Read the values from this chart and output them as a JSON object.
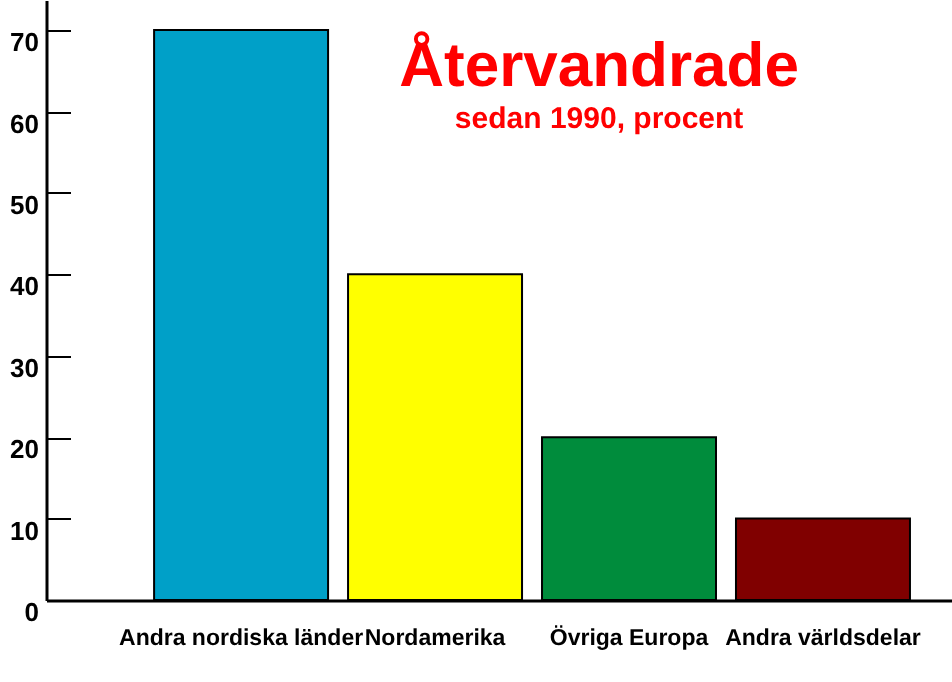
{
  "chart_data": {
    "type": "bar",
    "title": "Återvandrade",
    "subtitle": "sedan 1990,  procent",
    "categories": [
      "Andra nordiska länder",
      "Nordamerika",
      "Övriga Europa",
      "Andra världsdelar"
    ],
    "values": [
      70,
      40,
      20,
      10
    ],
    "colors": [
      "#00a0c8",
      "#ffff00",
      "#008c3c",
      "#800000"
    ],
    "ylim": [
      0,
      73.7
    ],
    "yticks": [
      0,
      10,
      20,
      30,
      40,
      50,
      60,
      70
    ],
    "grid": false,
    "legend": false
  }
}
